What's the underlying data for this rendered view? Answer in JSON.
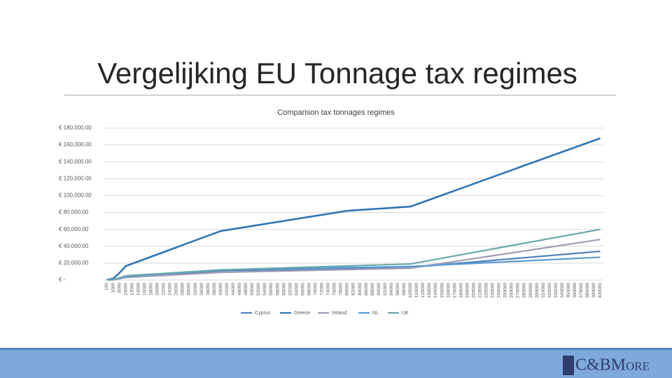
{
  "slide": {
    "title": "Vergelijking EU Tonnage tax regimes",
    "logo": "C&BMore"
  },
  "chart_data": {
    "type": "line",
    "title": "Comparison tax tonnages regimes",
    "categories": [
      "100",
      "1000",
      "5000",
      "10000",
      "12000",
      "14000",
      "16000",
      "18000",
      "20000",
      "22000",
      "24000",
      "26000",
      "28000",
      "30000",
      "32000",
      "34000",
      "36000",
      "38000",
      "40000",
      "42000",
      "44000",
      "46000",
      "48000",
      "50000",
      "52000",
      "54000",
      "56000",
      "58000",
      "60000",
      "62000",
      "64000",
      "66000",
      "68000",
      "70000",
      "72000",
      "74000",
      "76000",
      "78000",
      "80000",
      "82000",
      "84000",
      "86000",
      "88000",
      "90000",
      "92000",
      "94000",
      "96000",
      "98000",
      "100000",
      "110000",
      "120000",
      "130000",
      "140000",
      "150000",
      "160000",
      "170000",
      "180000",
      "190000",
      "200000",
      "210000",
      "220000",
      "230000",
      "240000",
      "250000",
      "260000",
      "270000",
      "280000",
      "290000",
      "300000",
      "310000",
      "320000",
      "330000",
      "340000",
      "350000",
      "360000",
      "370000",
      "380000",
      "390000",
      "400000"
    ],
    "series": [
      {
        "name": "Cyprus",
        "color": "#4f81bd",
        "values": [
          35,
          350,
          1750,
          3500,
          4000,
          4500,
          5000,
          5500,
          6000,
          6500,
          7000,
          7500,
          8000,
          8500,
          9000,
          9500,
          10000,
          10500,
          11000,
          11100,
          11300,
          11400,
          11500,
          11700,
          11800,
          11900,
          12100,
          12200,
          12300,
          12500,
          12600,
          12700,
          12900,
          13000,
          13100,
          13300,
          13400,
          13500,
          13700,
          13800,
          13900,
          14100,
          14200,
          14300,
          14500,
          14600,
          14700,
          14900,
          15000,
          15600,
          16300,
          16900,
          17500,
          18200,
          18800,
          19400,
          20100,
          20700,
          21300,
          22000,
          22600,
          23200,
          23900,
          24500,
          25100,
          25800,
          26400,
          27000,
          27700,
          28300,
          28900,
          29600,
          30200,
          30800,
          31500,
          32100,
          32700,
          33400,
          34000
        ]
      },
      {
        "name": "Greece",
        "color": "#2e75b6",
        "values": [
          165,
          1650,
          8250,
          16500,
          19300,
          22000,
          24800,
          27600,
          30300,
          33100,
          35900,
          38600,
          41400,
          44200,
          46900,
          49700,
          52500,
          55200,
          58000,
          59200,
          60400,
          61600,
          62800,
          64000,
          65200,
          66400,
          67600,
          68800,
          70000,
          71200,
          72400,
          73600,
          74800,
          76000,
          77200,
          78400,
          79600,
          80800,
          82000,
          82500,
          83000,
          83500,
          84000,
          84500,
          85000,
          85500,
          86000,
          86500,
          87000,
          89700,
          92400,
          95100,
          97800,
          100500,
          103200,
          105900,
          108600,
          111300,
          114000,
          116700,
          119400,
          122100,
          124800,
          127500,
          130200,
          132900,
          135600,
          138300,
          141000,
          143700,
          146400,
          149100,
          151800,
          154500,
          157200,
          159900,
          162600,
          165300,
          168000
        ]
      },
      {
        "name": "Ireland",
        "color": "#a09cb4",
        "values": [
          30,
          300,
          1500,
          3000,
          3400,
          3800,
          4200,
          4600,
          5000,
          5400,
          5800,
          6200,
          6600,
          7000,
          7400,
          7800,
          8200,
          8600,
          9000,
          9200,
          9300,
          9500,
          9700,
          9800,
          10000,
          10200,
          10300,
          10500,
          10700,
          10800,
          11000,
          11200,
          11300,
          11500,
          11700,
          11800,
          12000,
          12200,
          12300,
          12500,
          12700,
          12800,
          13000,
          13200,
          13300,
          13500,
          13700,
          13800,
          14000,
          15100,
          16300,
          17400,
          18500,
          19700,
          20800,
          21900,
          23100,
          24200,
          25300,
          26500,
          27600,
          28700,
          29900,
          31000,
          32100,
          33300,
          34400,
          35500,
          36700,
          37800,
          38900,
          40100,
          41200,
          42300,
          43500,
          44600,
          45700,
          46900,
          48000
        ]
      },
      {
        "name": "NL",
        "color": "#5b9bd5",
        "values": [
          40,
          400,
          2000,
          4000,
          4500,
          5100,
          5600,
          6100,
          6700,
          7200,
          7700,
          8300,
          8800,
          9300,
          9900,
          10400,
          10900,
          11500,
          12000,
          12100,
          12300,
          12400,
          12500,
          12700,
          12800,
          12900,
          13100,
          13200,
          13300,
          13500,
          13600,
          13700,
          13900,
          14000,
          14100,
          14300,
          14400,
          14500,
          14700,
          14800,
          14900,
          15100,
          15200,
          15300,
          15500,
          15600,
          15700,
          15900,
          16000,
          16400,
          16700,
          17100,
          17500,
          17800,
          18200,
          18600,
          18900,
          19300,
          19700,
          20000,
          20400,
          20800,
          21100,
          21500,
          21900,
          22200,
          22600,
          23000,
          23300,
          23700,
          24100,
          24400,
          24800,
          25200,
          25500,
          25900,
          26300,
          26600,
          27000
        ]
      },
      {
        "name": "UK",
        "color": "#6aa9ab",
        "values": [
          50,
          500,
          2500,
          5000,
          5500,
          5900,
          6400,
          6900,
          7300,
          7800,
          8300,
          8700,
          9200,
          9700,
          10100,
          10600,
          11100,
          11500,
          12000,
          12200,
          12500,
          12700,
          12900,
          13200,
          13400,
          13600,
          13900,
          14100,
          14300,
          14600,
          14800,
          15000,
          15300,
          15500,
          15700,
          16000,
          16200,
          16400,
          16700,
          16900,
          17100,
          17400,
          17600,
          17800,
          18100,
          18300,
          18500,
          18800,
          19000,
          20400,
          21700,
          23100,
          24500,
          25800,
          27200,
          28600,
          29900,
          31300,
          32700,
          34000,
          35400,
          36800,
          38100,
          39500,
          40900,
          42200,
          43600,
          45000,
          46300,
          47700,
          49100,
          50400,
          51800,
          53200,
          54500,
          55900,
          57300,
          58600,
          60000
        ]
      }
    ],
    "ylim": [
      0,
      180000
    ],
    "yticks": [
      {
        "value": 0,
        "label": "€ -"
      },
      {
        "value": 20000,
        "label": "€ 20,000.00"
      },
      {
        "value": 40000,
        "label": "€ 40,000.00"
      },
      {
        "value": 60000,
        "label": "€ 60,000.00"
      },
      {
        "value": 80000,
        "label": "€ 80,000.00"
      },
      {
        "value": 100000,
        "label": "€ 100,000.00"
      },
      {
        "value": 120000,
        "label": "€ 120,000.00"
      },
      {
        "value": 140000,
        "label": "€ 140,000.00"
      },
      {
        "value": 160000,
        "label": "€ 160,000.00"
      },
      {
        "value": 180000,
        "label": "€ 180,000.00"
      }
    ],
    "grid": true,
    "legend": "bottom"
  }
}
